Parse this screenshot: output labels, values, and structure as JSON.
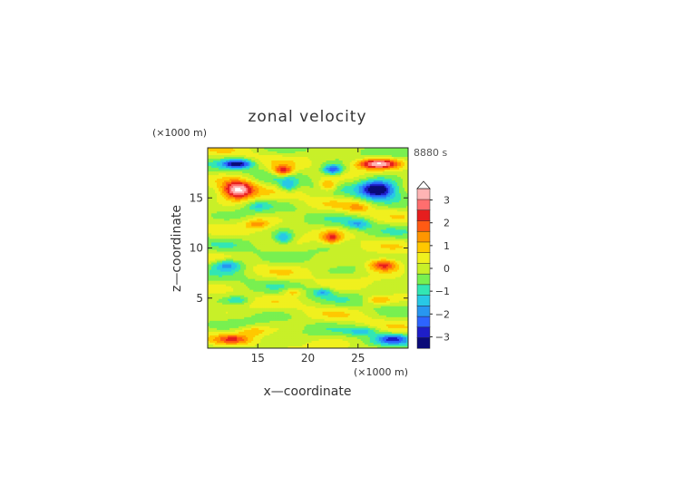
{
  "chart_data": {
    "type": "heatmap",
    "title": "zonal velocity",
    "time_label": "8880 s",
    "xlabel": "x—coordinate",
    "ylabel": "z—coordinate",
    "x_unit": "(×1000 m)",
    "y_unit": "(×1000 m)",
    "xlim": [
      10,
      30
    ],
    "ylim": [
      0,
      20
    ],
    "x_ticks": [
      15,
      20,
      25
    ],
    "y_ticks": [
      5,
      10,
      15
    ],
    "colorbar": {
      "ticks": [
        3,
        2,
        1,
        0,
        -1,
        -2,
        -3
      ],
      "range": [
        -3.5,
        3.5
      ],
      "levels": [
        "#0a0a78",
        "#1e1ec8",
        "#2d64ff",
        "#2896f0",
        "#28c8e6",
        "#32e6b4",
        "#78f050",
        "#c8f028",
        "#f0f01e",
        "#ffc800",
        "#ff9600",
        "#ff5a14",
        "#e61e1e",
        "#ff6e6e",
        "#ffb4b4"
      ],
      "overflow_color": "#ffffff"
    }
  }
}
